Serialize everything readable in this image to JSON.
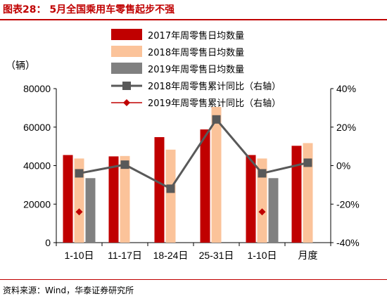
{
  "title": "图表28： 5月全国乘用车零售起步不强",
  "source": "资料来源：Wind，华泰证券研究所",
  "colors": {
    "title": "#c00000",
    "s2017": "#c00000",
    "s2018": "#fbc39a",
    "s2019": "#808080",
    "line2018": "#595959",
    "line2019": "#c00000"
  },
  "chart_data": {
    "type": "bar",
    "categories": [
      "1-10日",
      "11-17日",
      "18-24日",
      "25-31日",
      "1-10日",
      "月度"
    ],
    "ylabel": "（辆）",
    "ylim": [
      0,
      80000
    ],
    "y_ticks": [
      "0",
      "20000",
      "40000",
      "60000",
      "80000"
    ],
    "y2lim": [
      -40,
      40
    ],
    "y2_ticks": [
      "-40%",
      "-20%",
      "0%",
      "20%",
      "40%"
    ],
    "series": [
      {
        "name": "2017年周零售日均数量",
        "type": "bar",
        "axis": "left",
        "values": [
          45500,
          44800,
          54800,
          58800,
          45500,
          50300
        ]
      },
      {
        "name": "2018年周零售日均数量",
        "type": "bar",
        "axis": "left",
        "values": [
          43700,
          45000,
          48300,
          70500,
          43700,
          51700
        ]
      },
      {
        "name": "2019年周零售日均数量",
        "type": "bar",
        "axis": "left",
        "values": [
          33500,
          null,
          null,
          null,
          33500,
          null
        ]
      },
      {
        "name": "2018年周零售累计同比（右轴）",
        "type": "line",
        "axis": "right",
        "values": [
          -4,
          0.5,
          -12,
          24,
          -4,
          1.5
        ]
      },
      {
        "name": "2019年周零售累计同比（右轴）",
        "type": "line",
        "axis": "right",
        "values": [
          -24,
          null,
          null,
          null,
          -24,
          null
        ]
      }
    ],
    "grid": false,
    "legend": "top-center"
  }
}
